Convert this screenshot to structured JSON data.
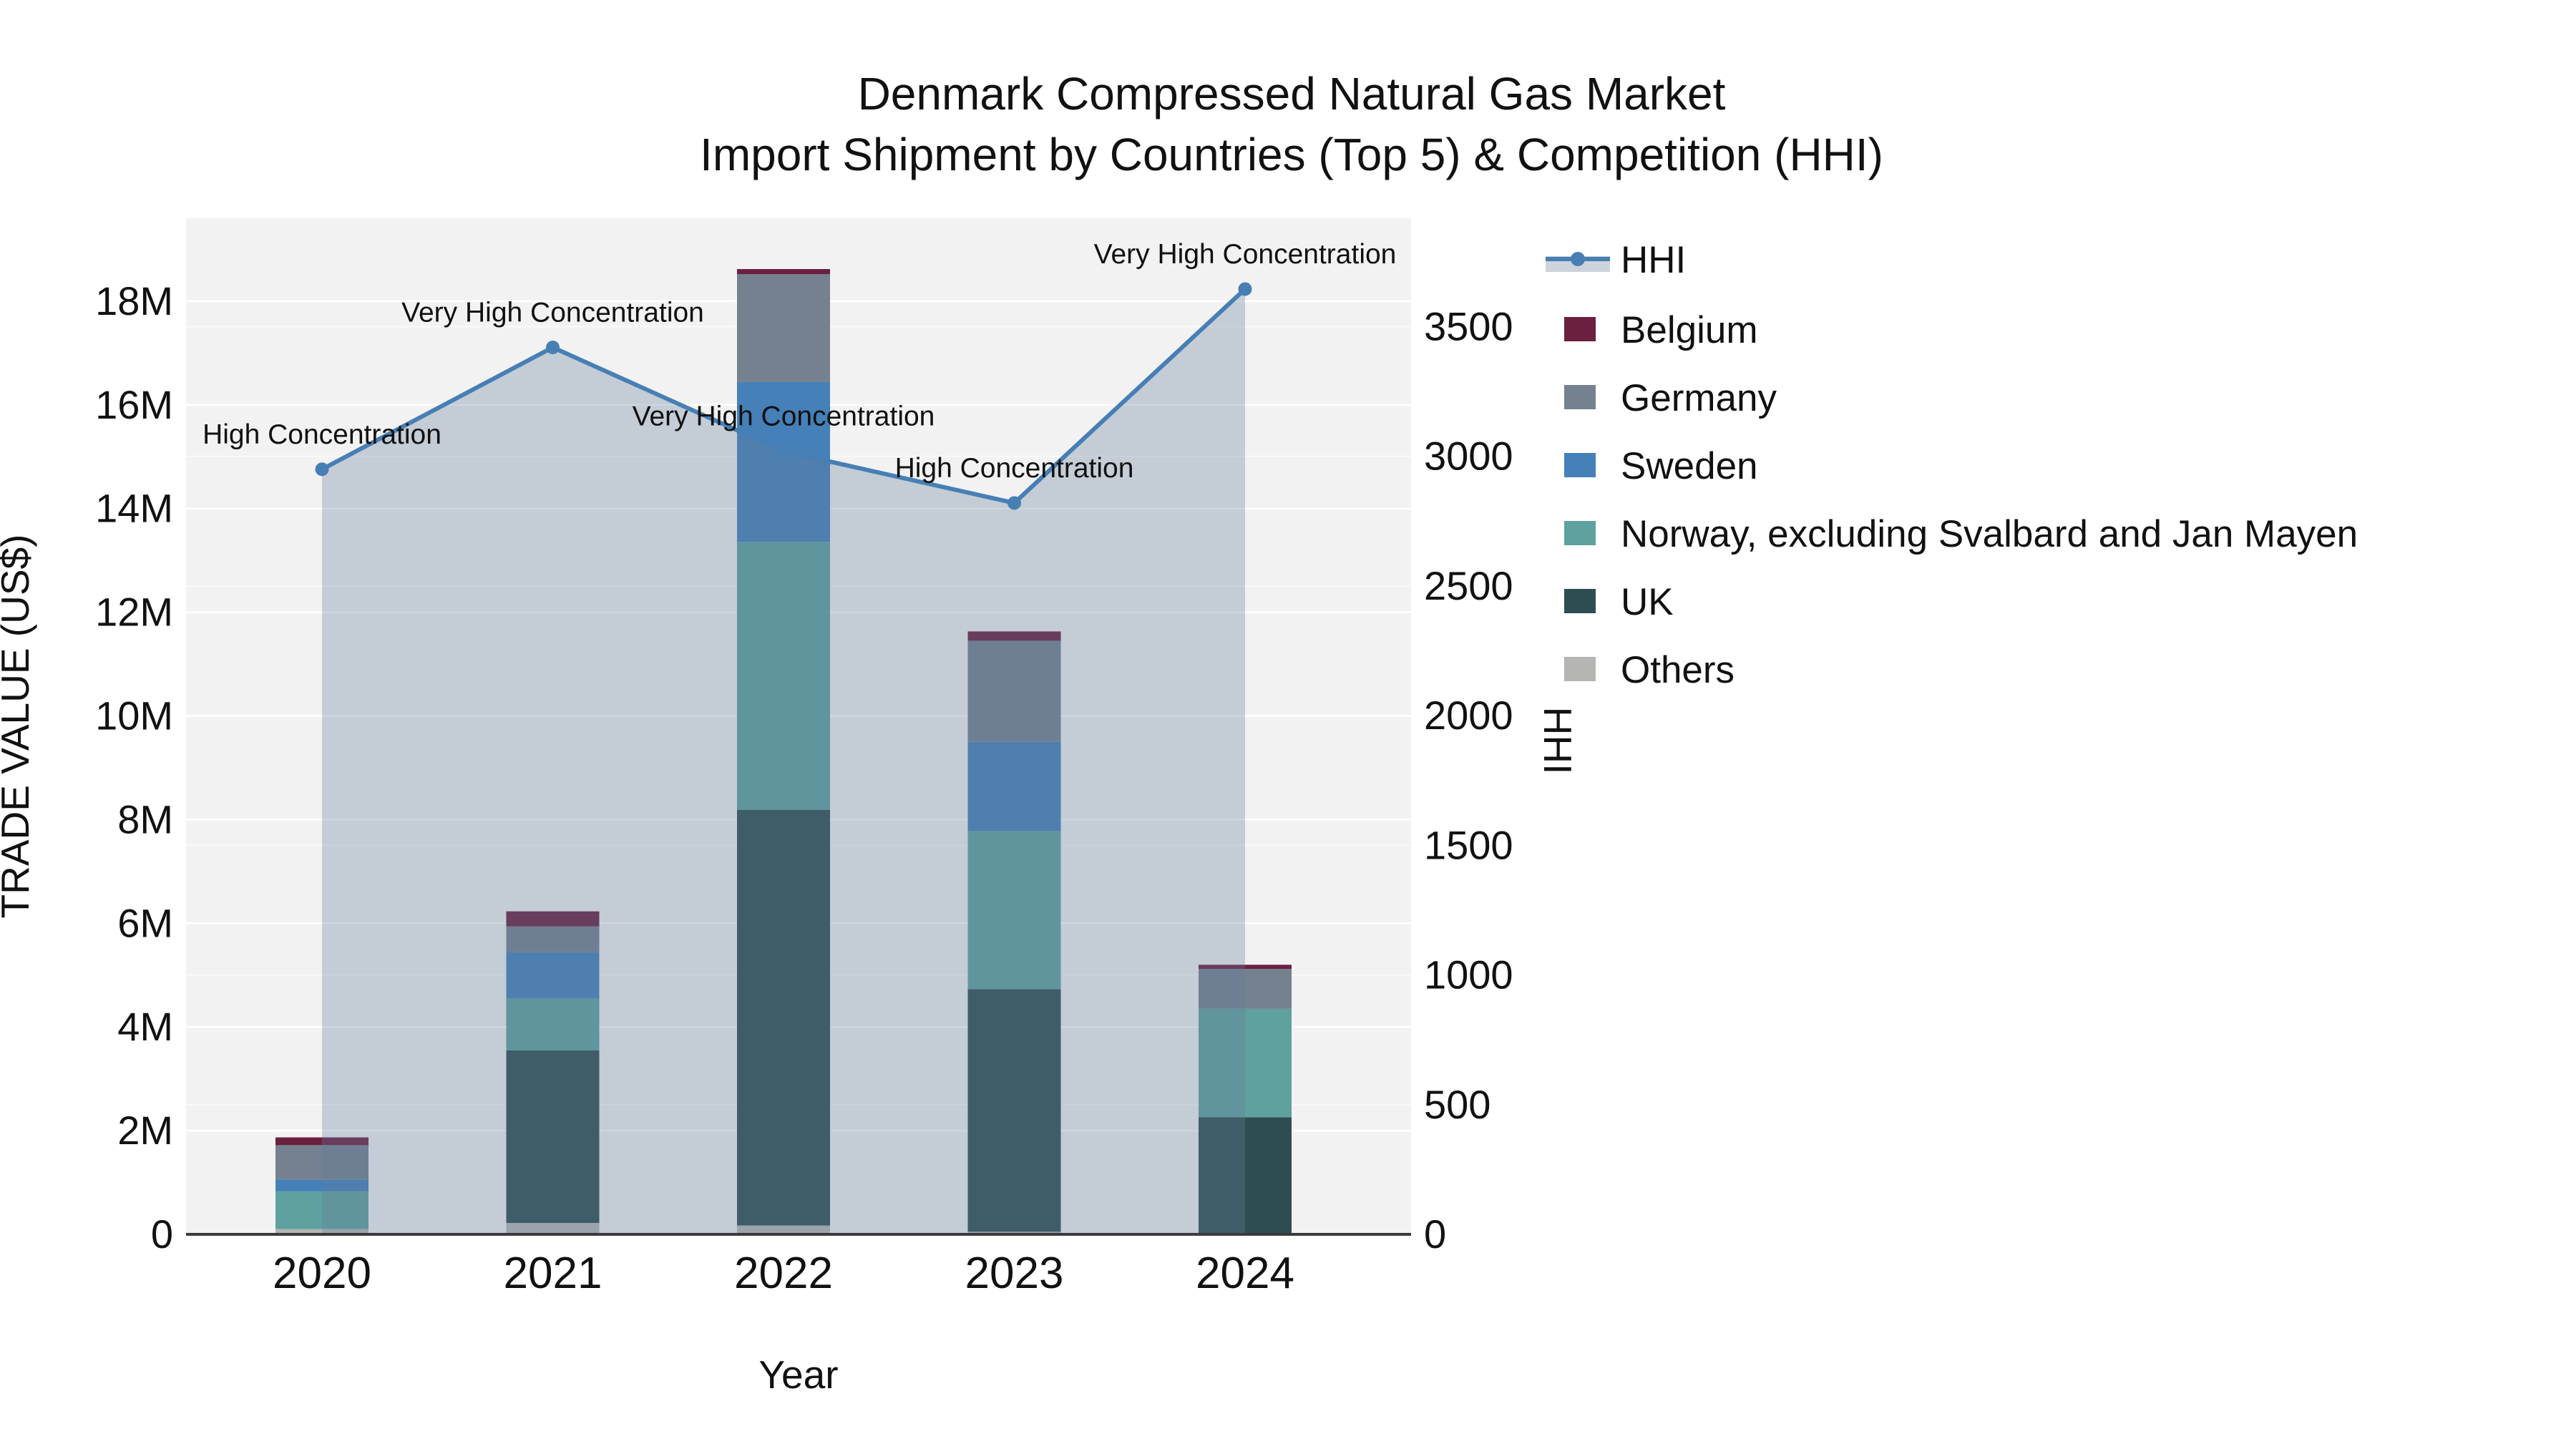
{
  "title": {
    "line1": "Denmark Compressed Natural Gas Market",
    "line2": "Import Shipment by Countries (Top 5) & Competition (HHI)"
  },
  "chart_data": {
    "type": "combo: stacked-bar + line",
    "categories": [
      "2020",
      "2021",
      "2022",
      "2023",
      "2024"
    ],
    "xlabel": "Year",
    "y_left": {
      "label": "TRADE VALUE (US$)",
      "unit": "million US$",
      "range": [
        0,
        19.6
      ],
      "ticks": [
        0,
        2,
        4,
        6,
        8,
        10,
        12,
        14,
        16,
        18
      ],
      "tick_labels": [
        "0",
        "2M",
        "4M",
        "6M",
        "8M",
        "10M",
        "12M",
        "14M",
        "16M",
        "18M"
      ]
    },
    "y_right": {
      "label": "HHI",
      "range": [
        0,
        3918
      ],
      "ticks": [
        0,
        500,
        1000,
        1500,
        2000,
        2500,
        3000,
        3500
      ],
      "tick_labels": [
        "0",
        "500",
        "1000",
        "1500",
        "2000",
        "2500",
        "3000",
        "3500"
      ]
    },
    "bar_series_note": "listed bottom-to-top of stack; values in million US$",
    "bar_series": [
      {
        "name": "Others",
        "color": "#b5b5b3",
        "values": [
          0.1,
          0.22,
          0.17,
          0.05,
          0
        ]
      },
      {
        "name": "UK",
        "color": "#2e4d52",
        "values": [
          0,
          3.33,
          8.02,
          4.68,
          2.26
        ]
      },
      {
        "name": "Norway, excluding Svalbard and Jan Mayen",
        "color": "#5fa19e",
        "values": [
          0.73,
          1.0,
          5.17,
          3.05,
          2.09
        ]
      },
      {
        "name": "Sweden",
        "color": "#4580b8",
        "values": [
          0.23,
          0.89,
          3.08,
          1.72,
          0
        ]
      },
      {
        "name": "Germany",
        "color": "#75818f",
        "values": [
          0.66,
          0.5,
          2.08,
          1.95,
          0.77
        ]
      },
      {
        "name": "Belgium",
        "color": "#6b2040",
        "values": [
          0.15,
          0.29,
          0.1,
          0.18,
          0.08
        ]
      }
    ],
    "line_series": {
      "name": "HHI",
      "color": "#477fb5",
      "fill_color": "rgba(100,125,155,0.32)",
      "values": [
        2950,
        3420,
        3020,
        2820,
        3645
      ],
      "annotations": [
        "High Concentration",
        "Very High Concentration",
        "Very High Concentration",
        "High Concentration",
        "Very High Concentration"
      ]
    },
    "legend": [
      {
        "label": "HHI",
        "type": "line",
        "color": "#477fb5",
        "fill": "#ccd3da"
      },
      {
        "label": "Belgium",
        "type": "swatch",
        "color": "#6b2040"
      },
      {
        "label": "Germany",
        "type": "swatch",
        "color": "#75818f"
      },
      {
        "label": "Sweden",
        "type": "swatch",
        "color": "#4580b8"
      },
      {
        "label": "Norway, excluding Svalbard and Jan Mayen",
        "type": "swatch",
        "color": "#5fa19e"
      },
      {
        "label": "UK",
        "type": "swatch",
        "color": "#2e4d52"
      },
      {
        "label": "Others",
        "type": "swatch",
        "color": "#b5b5b3"
      }
    ],
    "style": {
      "plot_bg": "#f2f2f2",
      "grid": "#ffffff",
      "axis_line": "#3a3a3a",
      "text": "#111111"
    }
  }
}
